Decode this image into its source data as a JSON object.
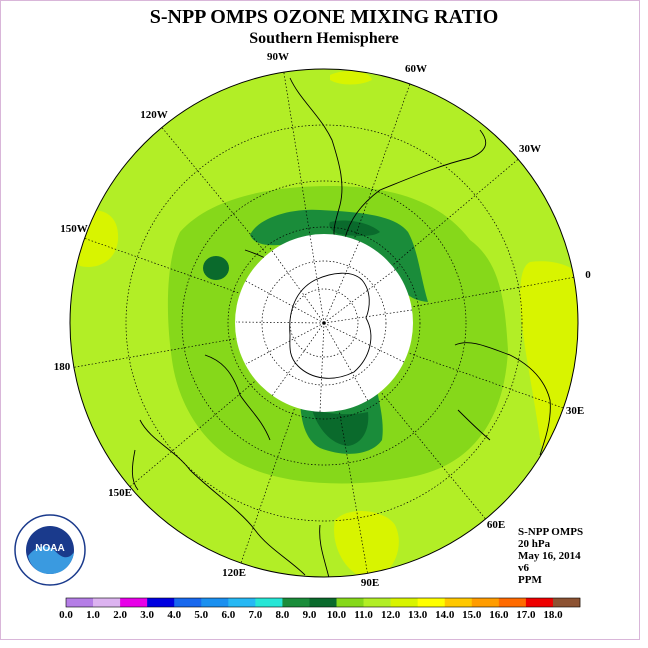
{
  "header": {
    "title": "S-NPP OMPS OZONE MIXING RATIO",
    "subtitle": "Southern Hemisphere"
  },
  "map": {
    "longitude_labels": [
      "90W",
      "60W",
      "30W",
      "0",
      "30E",
      "60E",
      "90E",
      "120E",
      "150E",
      "180",
      "150W",
      "120W"
    ]
  },
  "info_box": {
    "lines": [
      "S-NPP OMPS",
      "20 hPa",
      "May 16, 2014",
      "v6",
      "PPM"
    ]
  },
  "logo": {
    "text": "NOAA"
  },
  "colorbar": {
    "ticks": [
      "0.0",
      "1.0",
      "2.0",
      "3.0",
      "4.0",
      "5.0",
      "6.0",
      "7.0",
      "8.0",
      "9.0",
      "10.0",
      "11.0",
      "12.0",
      "13.0",
      "14.0",
      "15.0",
      "16.0",
      "17.0",
      "18.0"
    ],
    "colors": [
      "#b57ee6",
      "#dcb3f0",
      "#e800e8",
      "#0000e0",
      "#1868ee",
      "#1a90f0",
      "#26b8f4",
      "#26e6d6",
      "#1a8c3a",
      "#0a6a2c",
      "#86d81a",
      "#b2ee26",
      "#d8f400",
      "#ffff00",
      "#ffc800",
      "#ff9c00",
      "#ff6a00",
      "#ee0000",
      "#8c5232"
    ]
  },
  "chart_data": {
    "type": "heatmap",
    "variable": "ozone mixing ratio",
    "units": "PPM",
    "level": "20 hPa",
    "date": "May 16, 2014",
    "projection": "polar stereographic, south pole",
    "scale_min": 0.0,
    "scale_max": 18.0,
    "scale_step": 1.0,
    "regions": [
      {
        "region": "outer mid-latitudes",
        "range": [
          11.0,
          12.0
        ]
      },
      {
        "region": "ring around polar night",
        "range": [
          10.0,
          11.0
        ]
      },
      {
        "region": "patches near South America and south of Australia",
        "range": [
          9.0,
          10.0
        ]
      },
      {
        "region": "patches near 0 and 180 longitude",
        "range": [
          12.0,
          13.0
        ]
      },
      {
        "region": "polar night (no data)",
        "range": null
      }
    ]
  },
  "colors": {
    "land_outline": "#000000",
    "graticule": "#000000",
    "background": "#ffffff",
    "no_data": "#ffffff"
  }
}
